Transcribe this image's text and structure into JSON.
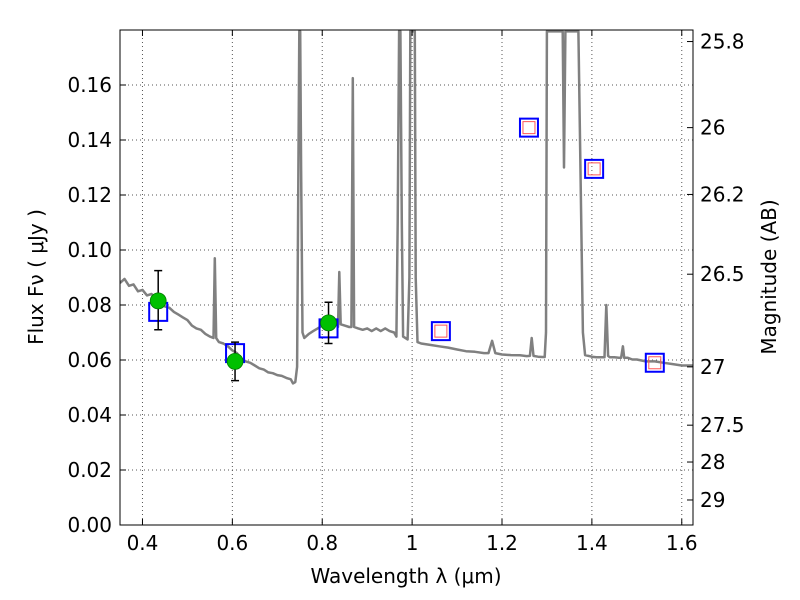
{
  "chart_data": {
    "type": "line",
    "xlabel": "Wavelength  λ (μm)",
    "ylabel": "Flux  Fν  ( μJy )",
    "y2label": "Magnitude (AB)",
    "xlim": [
      0.35,
      1.625
    ],
    "ylim": [
      0.0,
      0.18
    ],
    "grid": true,
    "x_ticks": [
      0.4,
      0.6,
      0.8,
      1.0,
      1.2,
      1.4,
      1.6
    ],
    "x_tick_labels": [
      "0.4",
      "0.6",
      "0.8",
      "1",
      "1.2",
      "1.4",
      "1.6"
    ],
    "y_ticks": [
      0.0,
      0.02,
      0.04,
      0.06,
      0.08,
      0.1,
      0.12,
      0.14,
      0.16
    ],
    "y_tick_labels": [
      "0.00",
      "0.02",
      "0.04",
      "0.06",
      "0.08",
      "0.10",
      "0.12",
      "0.14",
      "0.16"
    ],
    "mag_ticks": [
      {
        "label": "25.8",
        "flux": 0.1758
      },
      {
        "label": "26",
        "flux": 0.1445
      },
      {
        "label": "26.2",
        "flux": 0.1202
      },
      {
        "label": "26.5",
        "flux": 0.0912
      },
      {
        "label": "27",
        "flux": 0.0575
      },
      {
        "label": "27.5",
        "flux": 0.0363
      },
      {
        "label": "28",
        "flux": 0.0229
      },
      {
        "label": "29",
        "flux": 0.0091
      }
    ],
    "spectrum": {
      "color": "#808080",
      "points": [
        [
          0.35,
          0.088
        ],
        [
          0.36,
          0.0895
        ],
        [
          0.37,
          0.087
        ],
        [
          0.38,
          0.0875
        ],
        [
          0.39,
          0.085
        ],
        [
          0.4,
          0.0855
        ],
        [
          0.41,
          0.0835
        ],
        [
          0.42,
          0.084
        ],
        [
          0.43,
          0.0825
        ],
        [
          0.44,
          0.081
        ],
        [
          0.45,
          0.0795
        ],
        [
          0.46,
          0.079
        ],
        [
          0.47,
          0.0775
        ],
        [
          0.48,
          0.0765
        ],
        [
          0.49,
          0.0755
        ],
        [
          0.5,
          0.0745
        ],
        [
          0.51,
          0.0725
        ],
        [
          0.52,
          0.0715
        ],
        [
          0.53,
          0.071
        ],
        [
          0.54,
          0.0695
        ],
        [
          0.55,
          0.0685
        ],
        [
          0.558,
          0.068
        ],
        [
          0.561,
          0.097
        ],
        [
          0.564,
          0.068
        ],
        [
          0.57,
          0.0665
        ],
        [
          0.58,
          0.066
        ],
        [
          0.59,
          0.065
        ],
        [
          0.6,
          0.0635
        ],
        [
          0.61,
          0.0625
        ],
        [
          0.62,
          0.0605
        ],
        [
          0.63,
          0.0595
        ],
        [
          0.64,
          0.059
        ],
        [
          0.65,
          0.058
        ],
        [
          0.66,
          0.057
        ],
        [
          0.67,
          0.0565
        ],
        [
          0.68,
          0.0555
        ],
        [
          0.69,
          0.0552
        ],
        [
          0.7,
          0.0545
        ],
        [
          0.71,
          0.0542
        ],
        [
          0.72,
          0.0535
        ],
        [
          0.73,
          0.053
        ],
        [
          0.735,
          0.0515
        ],
        [
          0.74,
          0.052
        ],
        [
          0.744,
          0.0575
        ],
        [
          0.747,
          0.13
        ],
        [
          0.749,
          0.1795
        ],
        [
          0.751,
          0.1795
        ],
        [
          0.753,
          0.13
        ],
        [
          0.756,
          0.07
        ],
        [
          0.76,
          0.068
        ],
        [
          0.77,
          0.0695
        ],
        [
          0.78,
          0.0705
        ],
        [
          0.79,
          0.0715
        ],
        [
          0.8,
          0.0725
        ],
        [
          0.81,
          0.073
        ],
        [
          0.82,
          0.0745
        ],
        [
          0.83,
          0.0735
        ],
        [
          0.835,
          0.072
        ],
        [
          0.838,
          0.092
        ],
        [
          0.841,
          0.073
        ],
        [
          0.85,
          0.0725
        ],
        [
          0.86,
          0.072
        ],
        [
          0.865,
          0.072
        ],
        [
          0.868,
          0.1625
        ],
        [
          0.871,
          0.072
        ],
        [
          0.88,
          0.0715
        ],
        [
          0.89,
          0.071
        ],
        [
          0.9,
          0.0715
        ],
        [
          0.91,
          0.0705
        ],
        [
          0.92,
          0.0715
        ],
        [
          0.93,
          0.0705
        ],
        [
          0.94,
          0.0715
        ],
        [
          0.95,
          0.0705
        ],
        [
          0.96,
          0.07
        ],
        [
          0.965,
          0.0685
        ],
        [
          0.968,
          0.11
        ],
        [
          0.971,
          0.1795
        ],
        [
          0.974,
          0.1795
        ],
        [
          0.977,
          0.11
        ],
        [
          0.98,
          0.0685
        ],
        [
          0.985,
          0.068
        ],
        [
          0.99,
          0.0675
        ],
        [
          0.994,
          0.09
        ],
        [
          0.996,
          0.1795
        ],
        [
          1.006,
          0.1795
        ],
        [
          1.008,
          0.09
        ],
        [
          1.012,
          0.0665
        ],
        [
          1.02,
          0.066
        ],
        [
          1.04,
          0.0655
        ],
        [
          1.06,
          0.065
        ],
        [
          1.08,
          0.0645
        ],
        [
          1.1,
          0.0638
        ],
        [
          1.12,
          0.0632
        ],
        [
          1.14,
          0.063
        ],
        [
          1.16,
          0.0625
        ],
        [
          1.17,
          0.0625
        ],
        [
          1.178,
          0.067
        ],
        [
          1.185,
          0.0625
        ],
        [
          1.2,
          0.062
        ],
        [
          1.22,
          0.0618
        ],
        [
          1.24,
          0.0617
        ],
        [
          1.255,
          0.0614
        ],
        [
          1.262,
          0.0615
        ],
        [
          1.266,
          0.068
        ],
        [
          1.27,
          0.0615
        ],
        [
          1.28,
          0.0612
        ],
        [
          1.29,
          0.0611
        ],
        [
          1.295,
          0.0611
        ],
        [
          1.298,
          0.07
        ],
        [
          1.3,
          0.1795
        ],
        [
          1.335,
          0.1795
        ],
        [
          1.338,
          0.13
        ],
        [
          1.341,
          0.1795
        ],
        [
          1.37,
          0.1795
        ],
        [
          1.38,
          0.07
        ],
        [
          1.385,
          0.0618
        ],
        [
          1.4,
          0.0612
        ],
        [
          1.41,
          0.061
        ],
        [
          1.42,
          0.061
        ],
        [
          1.428,
          0.061
        ],
        [
          1.432,
          0.08
        ],
        [
          1.436,
          0.0615
        ],
        [
          1.44,
          0.061
        ],
        [
          1.45,
          0.061
        ],
        [
          1.46,
          0.0608
        ],
        [
          1.465,
          0.0608
        ],
        [
          1.469,
          0.065
        ],
        [
          1.472,
          0.0608
        ],
        [
          1.48,
          0.0608
        ],
        [
          1.49,
          0.0602
        ],
        [
          1.5,
          0.0602
        ],
        [
          1.52,
          0.0595
        ],
        [
          1.54,
          0.0595
        ],
        [
          1.56,
          0.059
        ],
        [
          1.58,
          0.0585
        ],
        [
          1.6,
          0.058
        ],
        [
          1.625,
          0.058
        ]
      ]
    },
    "observed_points": [
      {
        "x": 0.435,
        "y": 0.0815,
        "err_low": 0.071,
        "err_high": 0.0925
      },
      {
        "x": 0.606,
        "y": 0.0595,
        "err_low": 0.0525,
        "err_high": 0.0665
      },
      {
        "x": 0.814,
        "y": 0.0735,
        "err_low": 0.066,
        "err_high": 0.081
      }
    ],
    "model_squares": [
      {
        "x": 0.435,
        "y": 0.0775,
        "inner": false
      },
      {
        "x": 0.606,
        "y": 0.0625,
        "inner": false
      },
      {
        "x": 0.814,
        "y": 0.0715,
        "inner": false
      },
      {
        "x": 1.064,
        "y": 0.0705,
        "inner": true
      },
      {
        "x": 1.26,
        "y": 0.1445,
        "inner": true
      },
      {
        "x": 1.405,
        "y": 0.1295,
        "inner": true
      },
      {
        "x": 1.54,
        "y": 0.059,
        "inner": true
      }
    ],
    "colors": {
      "observed": "#00c000",
      "model": "#0000ff",
      "model_inner": "#ff5555",
      "grid": "#555555"
    }
  }
}
